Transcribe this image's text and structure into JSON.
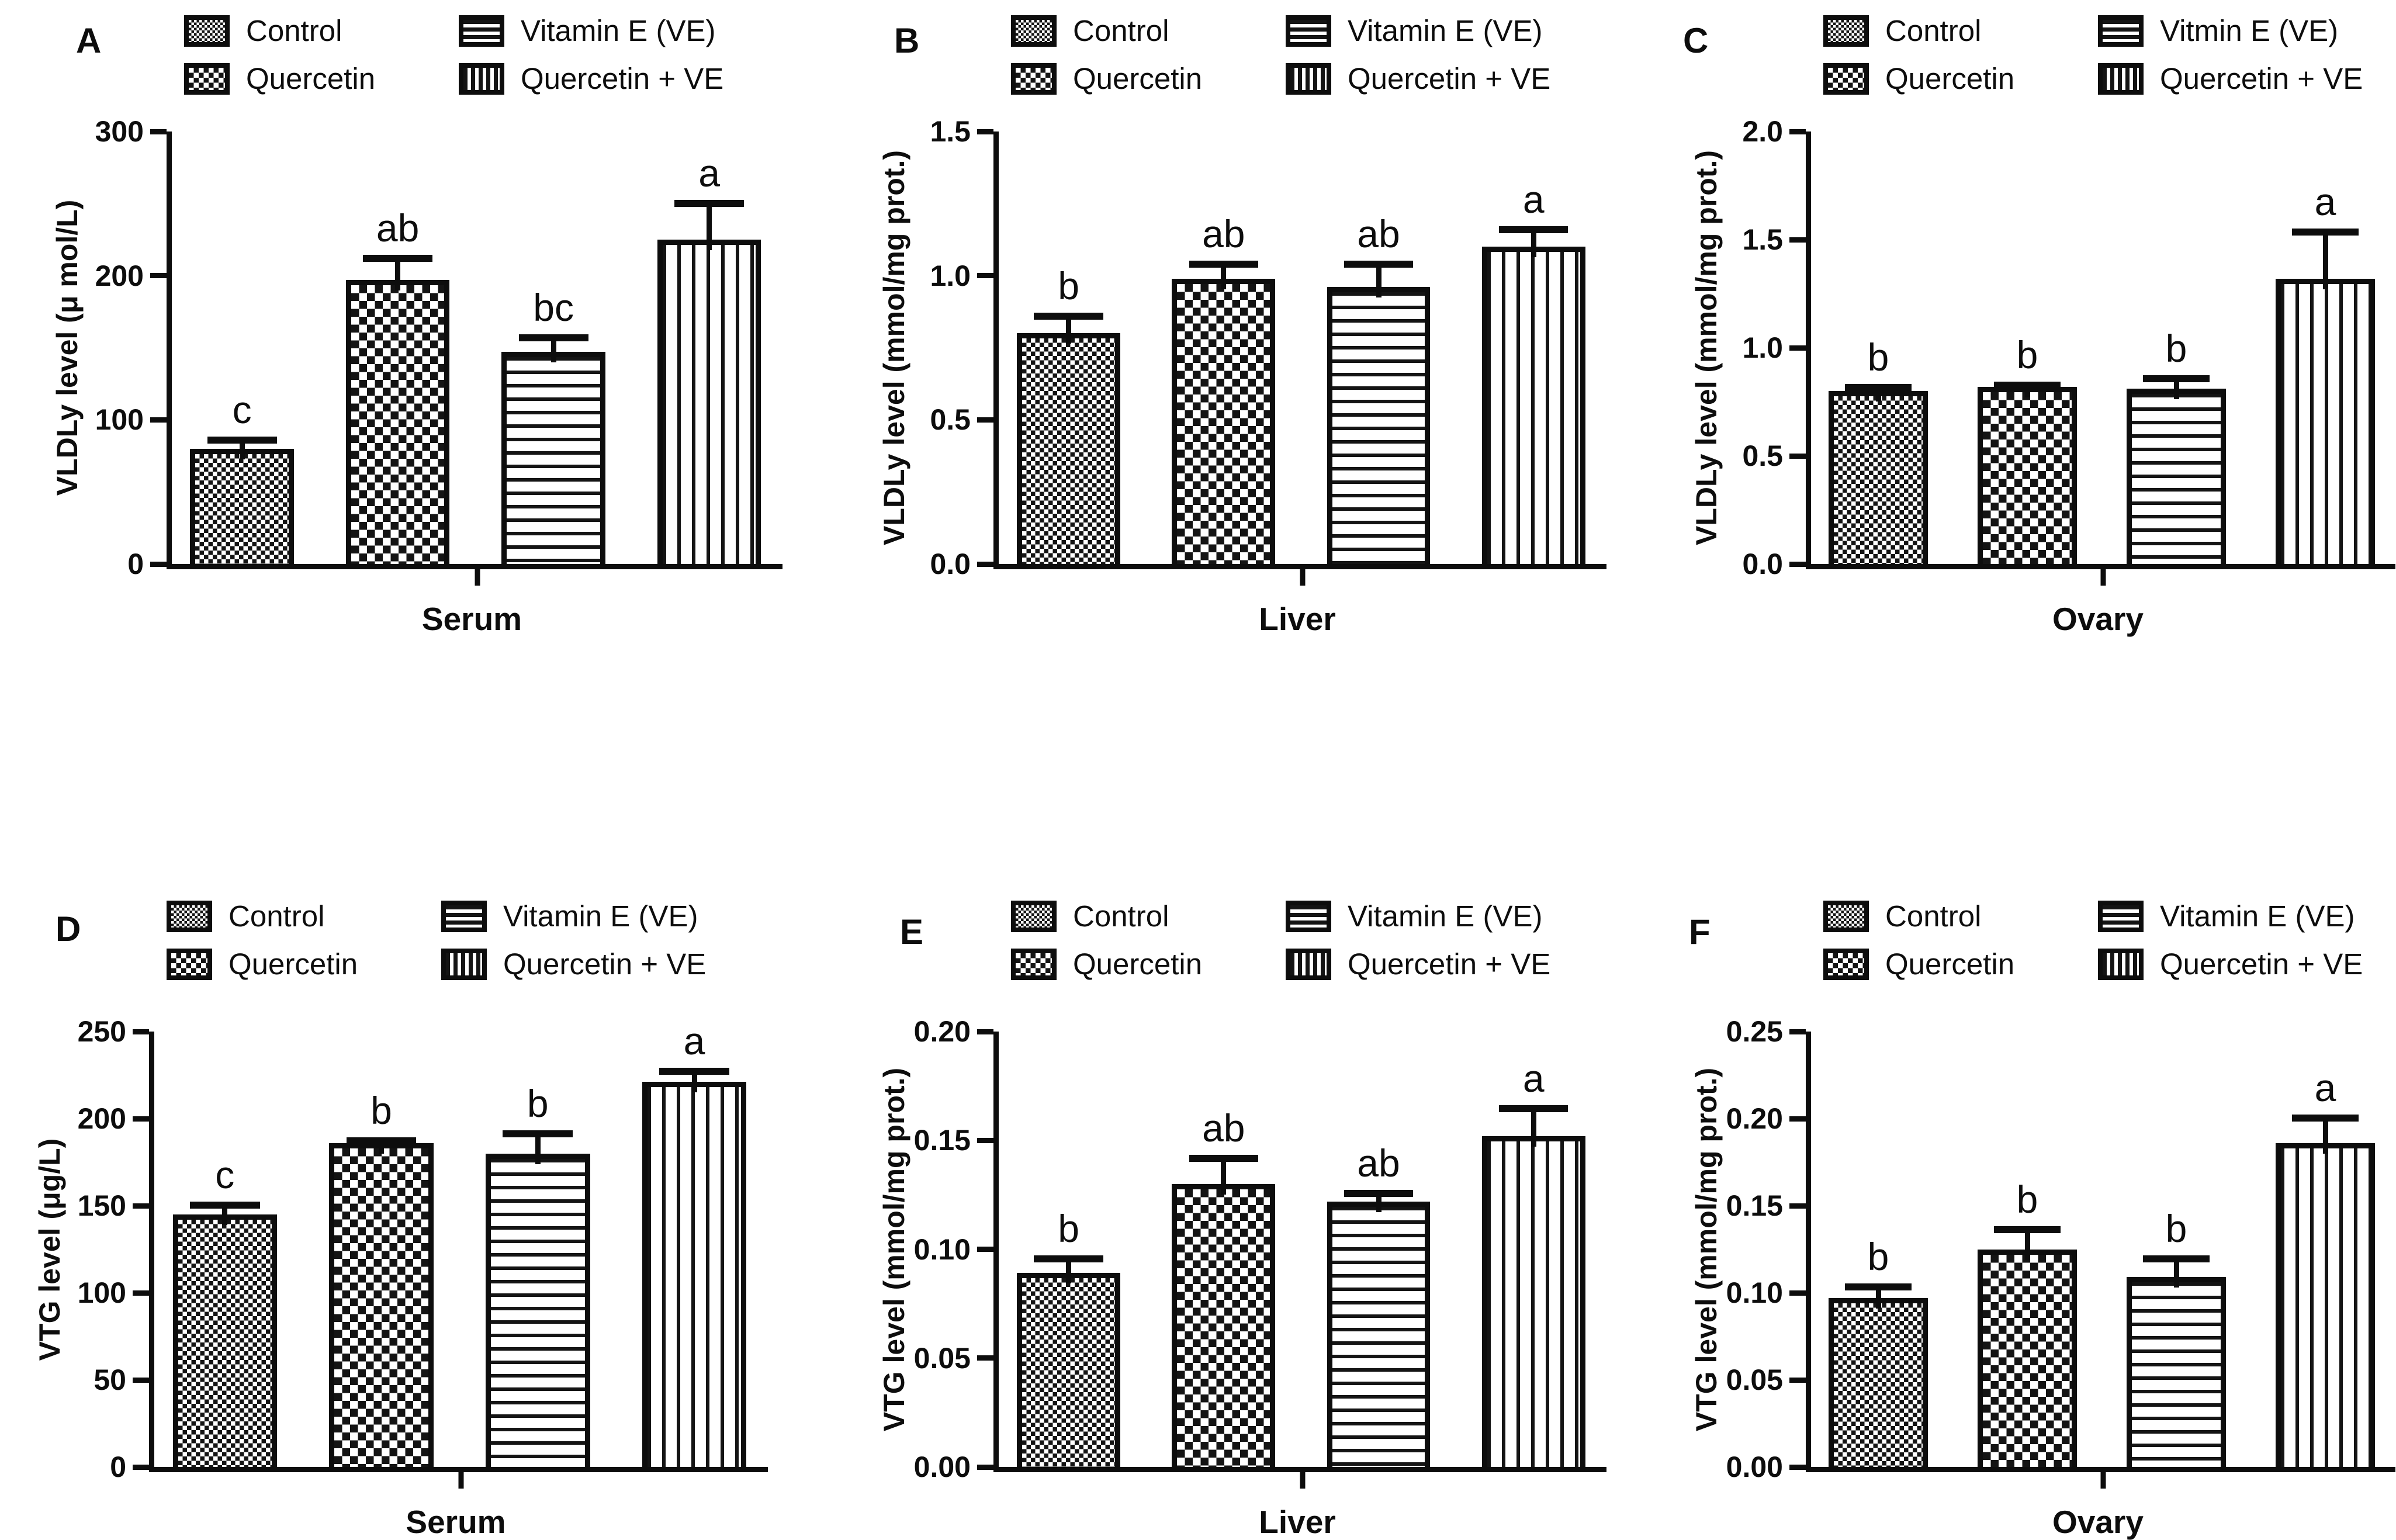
{
  "figure": {
    "background": "#ffffff",
    "ink_color": "#0d0d0d",
    "groups_order": [
      "Control",
      "Quercetin",
      "Vitamin E (VE)",
      "Quercetin + VE"
    ]
  },
  "chart_data": [
    {
      "id": "A",
      "letter": "A",
      "type": "bar",
      "ylabel": "VLDLy level (μ mol/L)",
      "xlabel": "Serum",
      "ylim": [
        0,
        300
      ],
      "yticks": [
        "0",
        "100",
        "200",
        "300"
      ],
      "grid": false,
      "legend_position": "top",
      "legend": [
        {
          "label": "Control",
          "pattern": "control"
        },
        {
          "label": "Vitamin E (VE)",
          "pattern": "ve"
        },
        {
          "label": "Quercetin",
          "pattern": "quercetin"
        },
        {
          "label": "Quercetin + VE",
          "pattern": "qve"
        }
      ],
      "bars": [
        {
          "name": "Control",
          "value": 80,
          "error": 8,
          "sig": "c",
          "pattern": "control"
        },
        {
          "name": "Quercetin",
          "value": 197,
          "error": 17,
          "sig": "ab",
          "pattern": "quercetin"
        },
        {
          "name": "Vitamin E (VE)",
          "value": 147,
          "error": 12,
          "sig": "bc",
          "pattern": "ve"
        },
        {
          "name": "Quercetin + VE",
          "value": 225,
          "error": 27,
          "sig": "a",
          "pattern": "qve"
        }
      ]
    },
    {
      "id": "B",
      "letter": "B",
      "type": "bar",
      "ylabel": "VLDLy level (mmol/mg prot.)",
      "xlabel": "Liver",
      "ylim": [
        0,
        1.5
      ],
      "yticks": [
        "0.0",
        "0.5",
        "1.0",
        "1.5"
      ],
      "grid": false,
      "legend_position": "top",
      "legend": [
        {
          "label": "Control",
          "pattern": "control"
        },
        {
          "label": "Vitamin E (VE)",
          "pattern": "ve"
        },
        {
          "label": "Quercetin",
          "pattern": "quercetin"
        },
        {
          "label": "Quercetin + VE",
          "pattern": "qve"
        }
      ],
      "bars": [
        {
          "name": "Control",
          "value": 0.8,
          "error": 0.07,
          "sig": "b",
          "pattern": "control"
        },
        {
          "name": "Quercetin",
          "value": 0.99,
          "error": 0.06,
          "sig": "ab",
          "pattern": "quercetin"
        },
        {
          "name": "Vitamin E (VE)",
          "value": 0.96,
          "error": 0.09,
          "sig": "ab",
          "pattern": "ve"
        },
        {
          "name": "Quercetin + VE",
          "value": 1.1,
          "error": 0.07,
          "sig": "a",
          "pattern": "qve"
        }
      ]
    },
    {
      "id": "C",
      "letter": "C",
      "type": "bar",
      "ylabel": "VLDLy level (mmol/mg prot.)",
      "xlabel": "Ovary",
      "ylim": [
        0,
        2.0
      ],
      "yticks": [
        "0.0",
        "0.5",
        "1.0",
        "1.5",
        "2.0"
      ],
      "grid": false,
      "legend_position": "top",
      "legend": [
        {
          "label": "Control",
          "pattern": "control"
        },
        {
          "label": "Vitmin E (VE)",
          "pattern": "ve"
        },
        {
          "label": "Quercetin",
          "pattern": "quercetin"
        },
        {
          "label": "Quercetin + VE",
          "pattern": "qve"
        }
      ],
      "bars": [
        {
          "name": "Control",
          "value": 0.8,
          "error": 0.03,
          "sig": "b",
          "pattern": "control"
        },
        {
          "name": "Quercetin",
          "value": 0.82,
          "error": 0.02,
          "sig": "b",
          "pattern": "quercetin"
        },
        {
          "name": "Vitamin E (VE)",
          "value": 0.81,
          "error": 0.06,
          "sig": "b",
          "pattern": "ve"
        },
        {
          "name": "Quercetin + VE",
          "value": 1.32,
          "error": 0.23,
          "sig": "a",
          "pattern": "qve"
        }
      ]
    },
    {
      "id": "D",
      "letter": "D",
      "type": "bar",
      "ylabel": "VTG level (μg/L)",
      "xlabel": "Serum",
      "ylim": [
        0,
        250
      ],
      "yticks": [
        "0",
        "50",
        "100",
        "150",
        "200",
        "250"
      ],
      "grid": false,
      "legend_position": "top",
      "legend": [
        {
          "label": "Control",
          "pattern": "control"
        },
        {
          "label": "Vitamin E (VE)",
          "pattern": "ve"
        },
        {
          "label": "Quercetin",
          "pattern": "quercetin"
        },
        {
          "label": "Quercetin + VE",
          "pattern": "qve"
        }
      ],
      "bars": [
        {
          "name": "Control",
          "value": 145,
          "error": 7,
          "sig": "c",
          "pattern": "control"
        },
        {
          "name": "Quercetin",
          "value": 186,
          "error": 3,
          "sig": "b",
          "pattern": "quercetin"
        },
        {
          "name": "Vitamin E (VE)",
          "value": 180,
          "error": 13,
          "sig": "b",
          "pattern": "ve"
        },
        {
          "name": "Quercetin + VE",
          "value": 221,
          "error": 8,
          "sig": "a",
          "pattern": "qve"
        }
      ]
    },
    {
      "id": "E",
      "letter": "E",
      "type": "bar",
      "ylabel": "VTG level (mmol/mg prot.)",
      "xlabel": "Liver",
      "ylim": [
        0,
        0.2
      ],
      "yticks": [
        "0.00",
        "0.05",
        "0.10",
        "0.15",
        "0.20"
      ],
      "grid": false,
      "legend_position": "top",
      "legend": [
        {
          "label": "Control",
          "pattern": "control"
        },
        {
          "label": "Vitamin E (VE)",
          "pattern": "ve"
        },
        {
          "label": "Quercetin",
          "pattern": "quercetin"
        },
        {
          "label": "Quercetin + VE",
          "pattern": "qve"
        }
      ],
      "bars": [
        {
          "name": "Control",
          "value": 0.089,
          "error": 0.008,
          "sig": "b",
          "pattern": "control"
        },
        {
          "name": "Quercetin",
          "value": 0.13,
          "error": 0.013,
          "sig": "ab",
          "pattern": "quercetin"
        },
        {
          "name": "Vitamin E (VE)",
          "value": 0.122,
          "error": 0.005,
          "sig": "ab",
          "pattern": "ve"
        },
        {
          "name": "Quercetin + VE",
          "value": 0.152,
          "error": 0.014,
          "sig": "a",
          "pattern": "qve"
        }
      ]
    },
    {
      "id": "F",
      "letter": "F",
      "type": "bar",
      "ylabel": "VTG level (mmol/mg prot.)",
      "xlabel": "Ovary",
      "ylim": [
        0,
        0.25
      ],
      "yticks": [
        "0.00",
        "0.05",
        "0.10",
        "0.15",
        "0.20",
        "0.25"
      ],
      "grid": false,
      "legend_position": "top",
      "legend": [
        {
          "label": "Control",
          "pattern": "control"
        },
        {
          "label": "Vitamin E (VE)",
          "pattern": "ve"
        },
        {
          "label": "Quercetin",
          "pattern": "quercetin"
        },
        {
          "label": "Quercetin + VE",
          "pattern": "qve"
        }
      ],
      "bars": [
        {
          "name": "Control",
          "value": 0.097,
          "error": 0.008,
          "sig": "b",
          "pattern": "control"
        },
        {
          "name": "Quercetin",
          "value": 0.125,
          "error": 0.013,
          "sig": "b",
          "pattern": "quercetin"
        },
        {
          "name": "Vitamin E (VE)",
          "value": 0.109,
          "error": 0.012,
          "sig": "b",
          "pattern": "ve"
        },
        {
          "name": "Quercetin + VE",
          "value": 0.186,
          "error": 0.016,
          "sig": "a",
          "pattern": "qve"
        }
      ]
    }
  ]
}
